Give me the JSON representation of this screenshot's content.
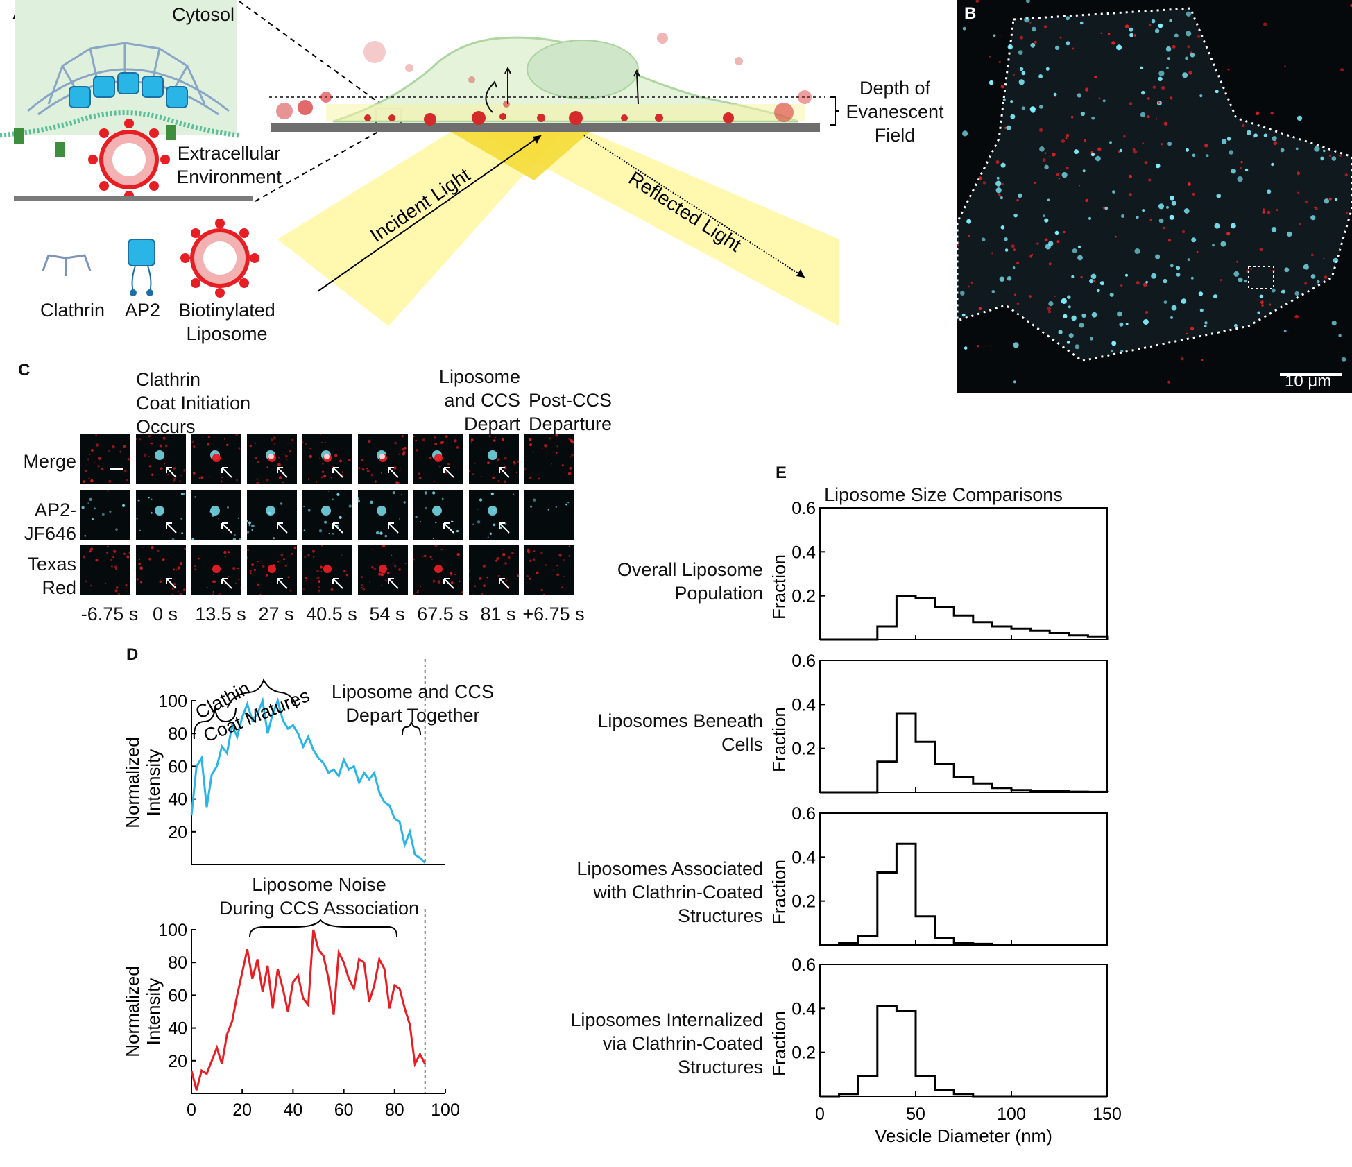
{
  "panels": {
    "a": "A",
    "b": "B",
    "c": "C",
    "d": "D",
    "e": "E"
  },
  "panel_a": {
    "cytosol": "Cytosol",
    "extracellular_line1": "Extracellular",
    "extracellular_line2": "Environment",
    "depth_line1": "Depth of",
    "depth_line2": "Evanescent",
    "depth_line3": "Field",
    "incident": "Incident Light",
    "reflected": "Reflected Light",
    "legend_clathrin": "Clathrin",
    "legend_ap2": "AP2",
    "legend_lipo_line1": "Biotinylated",
    "legend_lipo_line2": "Liposome"
  },
  "panel_b": {
    "scale_bar": "10 μm"
  },
  "panel_c": {
    "header_initiation": [
      "Clathrin",
      "Coat Initiation",
      "Occurs"
    ],
    "header_depart": [
      "Liposome",
      "and CCS",
      "Depart"
    ],
    "header_post": [
      "Post-CCS",
      "Departure"
    ],
    "rows": [
      "Merge",
      "AP2-|JF646",
      "Texas|Red"
    ],
    "row_line1": [
      "Merge",
      "AP2-",
      "Texas"
    ],
    "row_line2": [
      "",
      "JF646",
      "Red"
    ],
    "times": [
      "-6.75 s",
      "0 s",
      "13.5 s",
      "27 s",
      "40.5 s",
      "54 s",
      "67.5 s",
      "81 s",
      "+6.75 s"
    ]
  },
  "panel_d": {
    "top_annotation_1": "Clathin",
    "top_annotation_2": "Coat Matures",
    "top_annotation_3_line1": "Liposome and CCS",
    "top_annotation_3_line2": "Depart Together",
    "ylabel_line1": "Normalized",
    "ylabel_line2": "Intensity",
    "bottom_annotation_line1": "Liposome Noise",
    "bottom_annotation_line2": "During CCS Association",
    "yticks": [
      "100",
      "80",
      "60",
      "40",
      "20"
    ],
    "xticks": [
      "0",
      "20",
      "40",
      "60",
      "80",
      "100"
    ]
  },
  "panel_e": {
    "title": "Liposome Size Comparisons",
    "xlabel": "Vesicle Diameter (nm)",
    "ylabel": "Fraction",
    "yticks": [
      "0.6",
      "0.4",
      "0.2"
    ],
    "xticks": [
      "0",
      "50",
      "100",
      "150"
    ],
    "row_labels": [
      [
        "Overall Liposome",
        "Population",
        ""
      ],
      [
        "Liposomes Beneath",
        "Cells",
        ""
      ],
      [
        "Liposomes Associated",
        "with Clathrin-Coated",
        "Structures"
      ],
      [
        "Liposomes Internalized",
        "via Clathrin-Coated",
        "Structures"
      ]
    ]
  },
  "colors": {
    "clathrin_blue": "#29b6e6",
    "liposome_red": "#e81e25",
    "cyan_signal": "#7ff0ff",
    "beam_yellow": "#fff26b"
  },
  "chart_data": [
    {
      "type": "line",
      "title": "",
      "xlabel": "",
      "ylabel": "Normalized Intensity",
      "xlim": [
        0,
        100
      ],
      "ylim": [
        0,
        100
      ],
      "series": [
        {
          "name": "",
          "x": [
            0,
            2,
            4,
            6,
            8,
            10,
            12,
            14,
            16,
            18,
            20,
            22,
            24,
            26,
            28,
            30,
            32,
            34,
            36,
            38,
            40,
            42,
            44,
            46,
            48,
            50,
            52,
            54,
            56,
            58,
            60,
            62,
            64,
            66,
            68,
            70,
            72,
            74,
            76,
            78,
            80,
            82,
            84,
            86,
            88,
            90,
            92
          ],
          "values": [
            30,
            60,
            65,
            35,
            55,
            60,
            72,
            68,
            85,
            78,
            90,
            98,
            88,
            92,
            100,
            80,
            92,
            100,
            88,
            83,
            85,
            80,
            72,
            78,
            70,
            65,
            62,
            56,
            58,
            54,
            64,
            58,
            60,
            50,
            56,
            52,
            56,
            44,
            38,
            36,
            28,
            26,
            12,
            20,
            6,
            4,
            1
          ]
        }
      ]
    },
    {
      "type": "line",
      "title": "",
      "xlabel": "",
      "ylabel": "Normalized Intensity",
      "xlim": [
        0,
        100
      ],
      "ylim": [
        0,
        100
      ],
      "series": [
        {
          "name": "",
          "x": [
            0,
            2,
            4,
            6,
            8,
            10,
            12,
            14,
            16,
            18,
            20,
            22,
            24,
            26,
            28,
            30,
            32,
            34,
            36,
            38,
            40,
            42,
            44,
            46,
            48,
            50,
            52,
            54,
            56,
            58,
            60,
            62,
            64,
            66,
            68,
            70,
            72,
            74,
            76,
            78,
            80,
            82,
            84,
            86,
            88,
            90,
            92
          ],
          "values": [
            14,
            2,
            14,
            12,
            20,
            28,
            18,
            36,
            44,
            60,
            74,
            88,
            70,
            82,
            62,
            78,
            52,
            76,
            64,
            50,
            68,
            72,
            58,
            54,
            100,
            88,
            84,
            70,
            48,
            86,
            80,
            70,
            64,
            82,
            80,
            56,
            66,
            82,
            76,
            52,
            66,
            64,
            52,
            42,
            18,
            24,
            18
          ]
        }
      ]
    },
    {
      "type": "bar",
      "title": "Liposome Size Comparisons",
      "xlabel": "Vesicle Diameter (nm)",
      "ylabel": "Fraction",
      "subplots": [
        {
          "name": "Overall Liposome Population",
          "bin_edges": [
            0,
            10,
            20,
            30,
            40,
            50,
            60,
            70,
            80,
            90,
            100,
            110,
            120,
            130,
            140,
            150
          ],
          "values": [
            0,
            0,
            0,
            0.06,
            0.2,
            0.19,
            0.15,
            0.11,
            0.08,
            0.06,
            0.05,
            0.04,
            0.03,
            0.02,
            0.015
          ]
        },
        {
          "name": "Liposomes Beneath Cells",
          "bin_edges": [
            0,
            10,
            20,
            30,
            40,
            50,
            60,
            70,
            80,
            90,
            100,
            110,
            120,
            130,
            140,
            150
          ],
          "values": [
            0,
            0,
            0,
            0.14,
            0.36,
            0.23,
            0.13,
            0.07,
            0.04,
            0.02,
            0.01,
            0.005,
            0.005,
            0.003,
            0.002
          ]
        },
        {
          "name": "Liposomes Associated with Clathrin-Coated Structures",
          "bin_edges": [
            0,
            10,
            20,
            30,
            40,
            50,
            60,
            70,
            80,
            90,
            100,
            110,
            120,
            130,
            140,
            150
          ],
          "values": [
            0,
            0.01,
            0.04,
            0.33,
            0.46,
            0.13,
            0.03,
            0.01,
            0.005,
            0,
            0,
            0,
            0,
            0,
            0
          ]
        },
        {
          "name": "Liposomes Internalized via Clathrin-Coated Structures",
          "bin_edges": [
            0,
            10,
            20,
            30,
            40,
            50,
            60,
            70,
            80,
            90,
            100,
            110,
            120,
            130,
            140,
            150
          ],
          "values": [
            0,
            0.01,
            0.09,
            0.41,
            0.39,
            0.09,
            0.03,
            0.01,
            0,
            0,
            0,
            0,
            0,
            0,
            0
          ]
        }
      ],
      "xlim": [
        0,
        150
      ],
      "ylim": [
        0,
        0.6
      ]
    }
  ]
}
